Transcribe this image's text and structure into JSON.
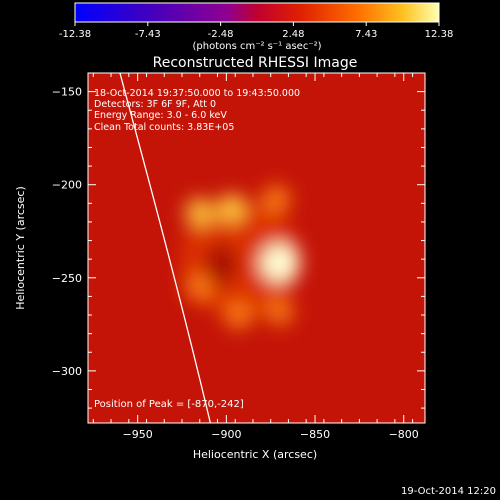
{
  "colorbar": {
    "ticks": [
      "-12.38",
      "-7.43",
      "-2.48",
      "2.48",
      "7.43",
      "12.38"
    ],
    "units": "(photons cm⁻² s⁻¹ asec⁻²)",
    "range": [
      -12.38,
      12.38
    ]
  },
  "info": {
    "line1": "18-Oct-2014 19:37:50.000 to 19:43:50.000",
    "line2": "Detectors: 3F 6F 9F, Att 0",
    "line3": "Energy Range: 3.0 - 6.0 keV",
    "line4": "Clean     Total counts: 3.83E+05"
  },
  "peak_label": "Position of Peak = [-870,-242]",
  "footer_date": "19-Oct-2014 12:20",
  "colors": {
    "background": "#000000",
    "text": "#ffffff"
  },
  "chart_data": {
    "type": "heatmap",
    "title": "Reconstructed RHESSI Image",
    "xlabel": "Heliocentric X (arcsec)",
    "ylabel": "Heliocentric Y (arcsec)",
    "xlim": [
      -978,
      -788
    ],
    "ylim": [
      -328,
      -140
    ],
    "xticks": [
      -950,
      -900,
      -850,
      -800
    ],
    "yticks": [
      -150,
      -200,
      -250,
      -300
    ],
    "xtick_labels": [
      "−950",
      "−900",
      "−850",
      "−800"
    ],
    "ytick_labels": [
      "−150",
      "−200",
      "−250",
      "−300"
    ],
    "sources": [
      {
        "x": -870,
        "y": -242,
        "intensity": 1.0
      },
      {
        "x": -897,
        "y": -213,
        "intensity": 0.75
      },
      {
        "x": -915,
        "y": -215,
        "intensity": 0.65
      },
      {
        "x": -872,
        "y": -208,
        "intensity": 0.55
      },
      {
        "x": -915,
        "y": -255,
        "intensity": 0.45
      },
      {
        "x": -893,
        "y": -270,
        "intensity": 0.45
      },
      {
        "x": -870,
        "y": -268,
        "intensity": 0.4
      }
    ],
    "limb_curve": [
      [
        -960,
        -140
      ],
      [
        -943,
        -200
      ],
      [
        -926,
        -260
      ],
      [
        -909,
        -328
      ]
    ],
    "peak": {
      "x": -870,
      "y": -242
    }
  }
}
